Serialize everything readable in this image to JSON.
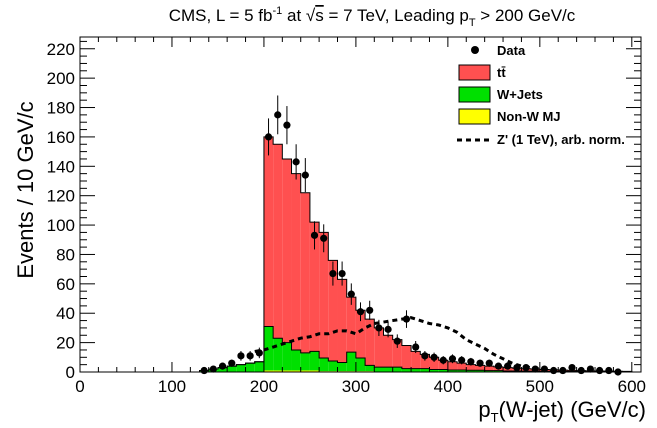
{
  "chart_data": {
    "type": "bar",
    "title": {
      "pre": "CMS, L = 5 fb",
      "sup": "-1",
      "at": " at ",
      "sqrt_s": "s",
      "energy": " = 7 TeV, Leading p",
      "sub_t": "T",
      "cut": " > 200 GeV/c"
    },
    "xlabel": {
      "main": "p",
      "sub": "T",
      "rest": "(W-jet) (GeV/c)"
    },
    "ylabel": "Events / 10 GeV/c",
    "xlim": [
      0,
      610
    ],
    "ylim": [
      0,
      228
    ],
    "x_ticks": [
      0,
      100,
      200,
      300,
      400,
      500,
      600
    ],
    "y_ticks": [
      0,
      20,
      40,
      60,
      80,
      100,
      120,
      140,
      160,
      180,
      200,
      220
    ],
    "bin_width": 10,
    "bin_lows": [
      130,
      140,
      150,
      160,
      170,
      180,
      190,
      200,
      210,
      220,
      230,
      240,
      250,
      260,
      270,
      280,
      290,
      300,
      310,
      320,
      330,
      340,
      350,
      360,
      370,
      380,
      390,
      400,
      410,
      420,
      430,
      440,
      450,
      460,
      470,
      480,
      490,
      500,
      510,
      520,
      530,
      540,
      550,
      560,
      570,
      580,
      590
    ],
    "series": [
      {
        "name": "Non-W MJ",
        "key": "nonw",
        "color": "#ffff00",
        "values": [
          0,
          0,
          0,
          0,
          0,
          0,
          0,
          1,
          1,
          1,
          1,
          1,
          1,
          0.5,
          0.5,
          0.5,
          0.5,
          0.5,
          0.5,
          0.3,
          0.3,
          0.3,
          0.3,
          0.3,
          0.3,
          0.2,
          0.2,
          0.2,
          0.2,
          0.2,
          0.2,
          0.1,
          0.1,
          0.1,
          0.1,
          0.1,
          0.1,
          0,
          0,
          0,
          0,
          0,
          0,
          0,
          0,
          0,
          0
        ]
      },
      {
        "name": "W+Jets",
        "key": "wjets",
        "color": "#00e000",
        "values": [
          1,
          2,
          3,
          4,
          5,
          6,
          7,
          30,
          22,
          19,
          14,
          12,
          13,
          9,
          7,
          6,
          13,
          9,
          4,
          3,
          3,
          3,
          2,
          2,
          2,
          1.5,
          1.5,
          1.2,
          1.2,
          1,
          1,
          0.8,
          0.8,
          0.6,
          0.6,
          0.5,
          0.5,
          0.4,
          0.4,
          0.3,
          0.3,
          0.3,
          0.2,
          0.2,
          0.2,
          0.1,
          0.1
        ]
      },
      {
        "name": "tt̄",
        "key": "ttbar",
        "color": "#ff5050",
        "stack_totals": [
          1,
          2,
          3,
          4,
          5,
          6,
          7,
          160,
          155,
          145,
          135,
          122,
          102,
          95,
          76,
          63,
          51,
          42,
          36,
          30,
          25,
          22,
          18,
          14,
          12,
          10,
          8,
          7,
          6,
          5,
          4.5,
          4,
          3.5,
          3,
          2.6,
          2.2,
          2,
          1.7,
          1.5,
          1.3,
          1.1,
          0.9,
          0.8,
          0.7,
          0.6,
          0.5,
          0.4
        ]
      }
    ],
    "data_series": {
      "name": "Data",
      "x": [
        135,
        145,
        155,
        165,
        175,
        185,
        195,
        205,
        215,
        225,
        235,
        245,
        255,
        265,
        275,
        285,
        295,
        305,
        315,
        325,
        335,
        345,
        355,
        365,
        375,
        385,
        395,
        405,
        415,
        425,
        435,
        445,
        455,
        465,
        475,
        485,
        495,
        505,
        515,
        525,
        535,
        545,
        555,
        565,
        575,
        585
      ],
      "y": [
        1,
        2,
        4,
        6,
        11,
        11,
        13,
        160,
        175,
        168,
        143,
        134,
        93,
        91,
        67,
        67,
        53,
        41,
        42,
        30,
        29,
        21,
        36,
        17,
        11,
        10,
        8,
        9,
        8,
        7,
        6,
        6,
        4,
        4,
        3,
        3,
        2,
        2,
        1,
        1,
        3,
        1,
        2,
        1,
        1,
        0
      ],
      "err": [
        1,
        1.4,
        2,
        2.4,
        3.3,
        3.3,
        3.6,
        12.6,
        13.2,
        13,
        12,
        11.6,
        9.6,
        9.5,
        8.2,
        8.2,
        7.3,
        6.4,
        6.5,
        5.5,
        5.4,
        4.6,
        6,
        4.1,
        3.3,
        3.2,
        2.8,
        3,
        2.8,
        2.6,
        2.4,
        2.4,
        2,
        2,
        1.7,
        1.7,
        1.4,
        1.4,
        1,
        1,
        1.7,
        1,
        1.4,
        1,
        1,
        0
      ]
    },
    "signal_series": {
      "name": "Z' (1 TeV), arb. norm.",
      "x": [
        190,
        200,
        210,
        220,
        230,
        240,
        250,
        260,
        270,
        280,
        290,
        300,
        310,
        320,
        330,
        340,
        350,
        360,
        370,
        380,
        390,
        400,
        410,
        420,
        430,
        440,
        450,
        460,
        470,
        480,
        490,
        500
      ],
      "y": [
        14,
        15,
        17,
        19,
        21,
        23,
        24,
        26,
        26,
        28,
        28,
        26,
        30,
        33,
        34,
        35,
        36,
        37,
        35,
        33,
        32,
        30,
        27,
        22,
        19,
        16,
        12,
        9,
        6,
        4,
        3,
        2
      ]
    },
    "legend": {
      "position": "top-right",
      "entries": [
        {
          "key": "data",
          "label": "Data"
        },
        {
          "key": "ttbar",
          "label": "tt̄"
        },
        {
          "key": "wjets",
          "label": "W+Jets"
        },
        {
          "key": "nonw",
          "label": "Non-W MJ"
        },
        {
          "key": "signal",
          "label": "Z' (1 TeV), arb. norm."
        }
      ]
    }
  }
}
